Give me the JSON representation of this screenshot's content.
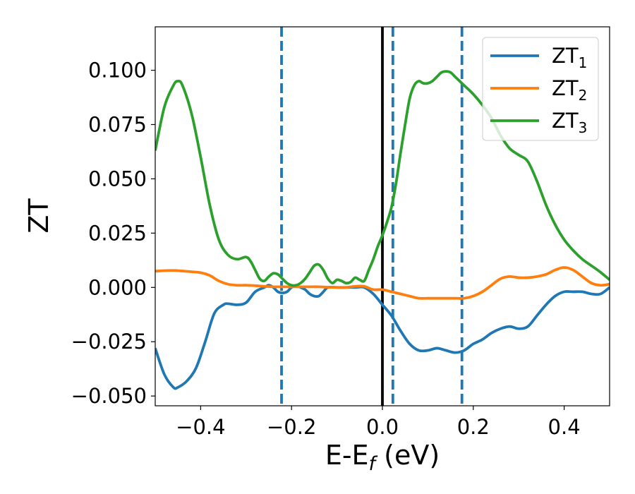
{
  "chart_data": {
    "type": "line",
    "title": "",
    "xlabel": "E-E",
    "xlabel_sub": "f",
    "xlabel_unit": " (eV)",
    "ylabel": "ZT",
    "xlim": [
      -0.5,
      0.5
    ],
    "ylim": [
      -0.0545,
      0.12
    ],
    "xticks": [
      -0.4,
      -0.2,
      0.0,
      0.2,
      0.4
    ],
    "xtick_labels": [
      "−0.4",
      "−0.2",
      "0.0",
      "0.2",
      "0.4"
    ],
    "yticks": [
      -0.05,
      -0.025,
      0.0,
      0.025,
      0.05,
      0.075,
      0.1
    ],
    "ytick_labels": [
      "−0.050",
      "−0.025",
      "0.000",
      "0.025",
      "0.050",
      "0.075",
      "0.100"
    ],
    "grid": false,
    "legend_position": "top-right",
    "vlines": [
      {
        "x": 0.0,
        "style": "solid",
        "color": "#000000"
      },
      {
        "x": -0.222,
        "style": "dashed",
        "color": "#1f77b4"
      },
      {
        "x": 0.023,
        "style": "dashed",
        "color": "#1f77b4"
      },
      {
        "x": 0.175,
        "style": "dashed",
        "color": "#1f77b4"
      }
    ],
    "series": [
      {
        "name": "ZT",
        "name_sub": "1",
        "color": "#1f77b4",
        "x": [
          -0.5,
          -0.48,
          -0.46,
          -0.45,
          -0.43,
          -0.41,
          -0.39,
          -0.37,
          -0.35,
          -0.34,
          -0.32,
          -0.3,
          -0.28,
          -0.26,
          -0.25,
          -0.24,
          -0.23,
          -0.22,
          -0.21,
          -0.2,
          -0.19,
          -0.18,
          -0.17,
          -0.16,
          -0.15,
          -0.14,
          -0.13,
          -0.12,
          -0.1,
          -0.08,
          -0.06,
          -0.04,
          -0.02,
          0.0,
          0.02,
          0.04,
          0.06,
          0.08,
          0.1,
          0.12,
          0.14,
          0.16,
          0.18,
          0.2,
          0.22,
          0.24,
          0.26,
          0.28,
          0.3,
          0.32,
          0.34,
          0.36,
          0.38,
          0.4,
          0.42,
          0.44,
          0.46,
          0.48,
          0.5
        ],
        "y": [
          -0.028,
          -0.04,
          -0.046,
          -0.046,
          -0.043,
          -0.037,
          -0.025,
          -0.012,
          -0.008,
          -0.0075,
          -0.008,
          -0.007,
          -0.002,
          0.0,
          0.001,
          0.0,
          -0.002,
          -0.0025,
          -0.002,
          0.0,
          0.0005,
          0.0,
          -0.001,
          -0.003,
          -0.004,
          -0.004,
          -0.002,
          0.0,
          0.0,
          0.0,
          0.0,
          0.0,
          -0.003,
          -0.008,
          -0.013,
          -0.02,
          -0.026,
          -0.029,
          -0.029,
          -0.028,
          -0.029,
          -0.03,
          -0.029,
          -0.026,
          -0.024,
          -0.021,
          -0.019,
          -0.018,
          -0.019,
          -0.018,
          -0.013,
          -0.008,
          -0.004,
          -0.002,
          -0.002,
          -0.002,
          -0.003,
          -0.003,
          0.0
        ]
      },
      {
        "name": "ZT",
        "name_sub": "2",
        "color": "#ff7f0e",
        "x": [
          -0.5,
          -0.46,
          -0.42,
          -0.4,
          -0.38,
          -0.36,
          -0.34,
          -0.32,
          -0.3,
          -0.28,
          -0.26,
          -0.24,
          -0.22,
          -0.2,
          -0.18,
          -0.16,
          -0.14,
          -0.12,
          -0.1,
          -0.08,
          -0.06,
          -0.04,
          -0.02,
          0.0,
          0.02,
          0.04,
          0.06,
          0.08,
          0.1,
          0.12,
          0.14,
          0.16,
          0.18,
          0.2,
          0.22,
          0.24,
          0.26,
          0.28,
          0.3,
          0.32,
          0.34,
          0.36,
          0.38,
          0.4,
          0.42,
          0.44,
          0.46,
          0.48,
          0.5
        ],
        "y": [
          0.0075,
          0.0078,
          0.0072,
          0.0068,
          0.0055,
          0.003,
          0.0015,
          0.001,
          0.001,
          0.0008,
          0.0005,
          0.0003,
          0.0003,
          0.0003,
          0.0003,
          0.0003,
          0.0003,
          0.0001,
          0.0,
          0.0,
          0.0005,
          0.0005,
          -0.001,
          -0.001,
          -0.002,
          -0.003,
          -0.004,
          -0.005,
          -0.005,
          -0.005,
          -0.005,
          -0.005,
          -0.005,
          -0.004,
          -0.002,
          0.001,
          0.004,
          0.005,
          0.0045,
          0.0045,
          0.005,
          0.006,
          0.008,
          0.0092,
          0.008,
          0.005,
          0.002,
          0.001,
          0.0015
        ]
      },
      {
        "name": "ZT",
        "name_sub": "3",
        "color": "#2ca02c",
        "x": [
          -0.5,
          -0.48,
          -0.46,
          -0.45,
          -0.44,
          -0.42,
          -0.4,
          -0.38,
          -0.36,
          -0.34,
          -0.32,
          -0.3,
          -0.29,
          -0.28,
          -0.27,
          -0.26,
          -0.25,
          -0.24,
          -0.23,
          -0.22,
          -0.21,
          -0.2,
          -0.19,
          -0.18,
          -0.17,
          -0.16,
          -0.15,
          -0.14,
          -0.13,
          -0.12,
          -0.11,
          -0.1,
          -0.09,
          -0.08,
          -0.07,
          -0.06,
          -0.05,
          -0.04,
          -0.03,
          -0.02,
          -0.01,
          0.0,
          0.01,
          0.02,
          0.03,
          0.04,
          0.05,
          0.06,
          0.07,
          0.08,
          0.09,
          0.1,
          0.11,
          0.12,
          0.13,
          0.14,
          0.15,
          0.16,
          0.17,
          0.18,
          0.2,
          0.22,
          0.24,
          0.26,
          0.28,
          0.3,
          0.32,
          0.34,
          0.36,
          0.38,
          0.4,
          0.42,
          0.44,
          0.46,
          0.48,
          0.5
        ],
        "y": [
          0.063,
          0.083,
          0.093,
          0.095,
          0.093,
          0.08,
          0.06,
          0.038,
          0.022,
          0.015,
          0.013,
          0.014,
          0.012,
          0.008,
          0.004,
          0.003,
          0.005,
          0.0065,
          0.006,
          0.004,
          0.002,
          0.001,
          0.001,
          0.002,
          0.004,
          0.007,
          0.01,
          0.0105,
          0.008,
          0.004,
          0.002,
          0.0035,
          0.003,
          0.002,
          0.0025,
          0.0045,
          0.0035,
          0.003,
          0.008,
          0.013,
          0.019,
          0.024,
          0.03,
          0.037,
          0.048,
          0.062,
          0.075,
          0.087,
          0.093,
          0.095,
          0.094,
          0.094,
          0.095,
          0.097,
          0.099,
          0.0995,
          0.099,
          0.097,
          0.095,
          0.093,
          0.089,
          0.084,
          0.078,
          0.07,
          0.064,
          0.061,
          0.058,
          0.049,
          0.038,
          0.029,
          0.022,
          0.017,
          0.013,
          0.01,
          0.007,
          0.0035
        ]
      }
    ]
  }
}
